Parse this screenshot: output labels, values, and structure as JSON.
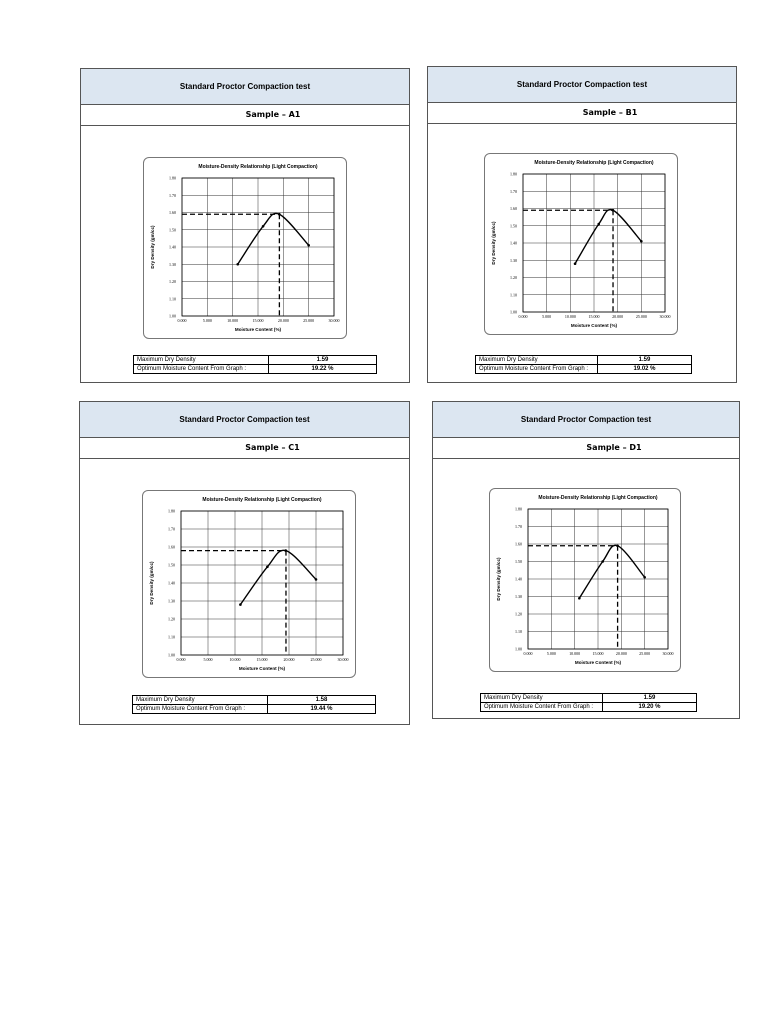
{
  "panels": [
    {
      "header": "Standard Proctor Compaction test",
      "sample": "Sample – A1",
      "max_dry_density_label": "Maximum Dry Density",
      "max_dry_density_value": "1.59",
      "omc_label": "Optimum Moisture Content From Graph :",
      "omc_value": "19.22 %"
    },
    {
      "header": "Standard Proctor Compaction test",
      "sample": "Sample – B1",
      "max_dry_density_label": "Maximum Dry Density",
      "max_dry_density_value": "1.59",
      "omc_label": "Optimum Moisture Content From Graph :",
      "omc_value": "19.02 %"
    },
    {
      "header": "Standard Proctor Compaction test",
      "sample": "Sample – C1",
      "max_dry_density_label": "Maximum Dry Density",
      "max_dry_density_value": "1.58",
      "omc_label": "Optimum Moisture Content From Graph :",
      "omc_value": "19.44 %"
    },
    {
      "header": "Standard Proctor Compaction test",
      "sample": "Sample – D1",
      "max_dry_density_label": "Maximum Dry Density",
      "max_dry_density_value": "1.59",
      "omc_label": "Optimum Moisture Content From Graph :",
      "omc_value": "19.20 %"
    }
  ],
  "chart_data": [
    {
      "type": "line",
      "title": "Moisture-Density Relationship (Light Compaction)",
      "xlabel": "Moisture Content (%)",
      "ylabel": "Dry Density (gm/cc)",
      "xlim": [
        0,
        30
      ],
      "ylim": [
        1.0,
        1.8
      ],
      "xticks": [
        "0.000",
        "5.000",
        "10.000",
        "15.000",
        "20.000",
        "25.000",
        "30.000"
      ],
      "yticks": [
        "1.00",
        "1.10",
        "1.20",
        "1.30",
        "1.40",
        "1.50",
        "1.60",
        "1.70",
        "1.80"
      ],
      "grid": true,
      "series": [
        {
          "x": [
            11.0,
            16.0,
            19.2,
            25.0
          ],
          "y": [
            1.3,
            1.52,
            1.59,
            1.41
          ]
        }
      ],
      "optimum": {
        "x": 19.22,
        "y": 1.59
      }
    },
    {
      "type": "line",
      "title": "Moisture-Density Relationship (Light Compaction)",
      "xlabel": "Moisture Content (%)",
      "ylabel": "Dry Density (gm/cc)",
      "xlim": [
        0,
        30
      ],
      "ylim": [
        1.0,
        1.8
      ],
      "xticks": [
        "0.000",
        "5.000",
        "10.000",
        "15.000",
        "20.000",
        "25.000",
        "30.000"
      ],
      "yticks": [
        "1.00",
        "1.10",
        "1.20",
        "1.30",
        "1.40",
        "1.50",
        "1.60",
        "1.70",
        "1.80"
      ],
      "grid": true,
      "series": [
        {
          "x": [
            11.0,
            16.0,
            19.0,
            25.0
          ],
          "y": [
            1.28,
            1.51,
            1.59,
            1.41
          ]
        }
      ],
      "optimum": {
        "x": 19.02,
        "y": 1.59
      }
    },
    {
      "type": "line",
      "title": "Moisture-Density Relationship (Light Compaction)",
      "xlabel": "Moisture Content (%)",
      "ylabel": "Dry Density (gm/cc)",
      "xlim": [
        0,
        30
      ],
      "ylim": [
        1.0,
        1.8
      ],
      "xticks": [
        "0.000",
        "5.000",
        "10.000",
        "15.000",
        "20.000",
        "25.000",
        "30.000"
      ],
      "yticks": [
        "1.00",
        "1.10",
        "1.20",
        "1.30",
        "1.40",
        "1.50",
        "1.60",
        "1.70",
        "1.80"
      ],
      "grid": true,
      "series": [
        {
          "x": [
            11.0,
            16.0,
            19.4,
            25.0
          ],
          "y": [
            1.28,
            1.49,
            1.58,
            1.42
          ]
        }
      ],
      "optimum": {
        "x": 19.44,
        "y": 1.58
      }
    },
    {
      "type": "line",
      "title": "Moisture-Density Relationship (Light Compaction)",
      "xlabel": "Moisture Content (%)",
      "ylabel": "Dry Density (gm/cc)",
      "xlim": [
        0,
        30
      ],
      "ylim": [
        1.0,
        1.8
      ],
      "xticks": [
        "0.000",
        "5.000",
        "10.000",
        "15.000",
        "20.000",
        "25.000",
        "30.000"
      ],
      "yticks": [
        "1.00",
        "1.10",
        "1.20",
        "1.30",
        "1.40",
        "1.50",
        "1.60",
        "1.70",
        "1.80"
      ],
      "grid": true,
      "series": [
        {
          "x": [
            11.0,
            16.0,
            19.2,
            25.0
          ],
          "y": [
            1.29,
            1.5,
            1.59,
            1.41
          ]
        }
      ],
      "optimum": {
        "x": 19.2,
        "y": 1.59
      }
    }
  ]
}
